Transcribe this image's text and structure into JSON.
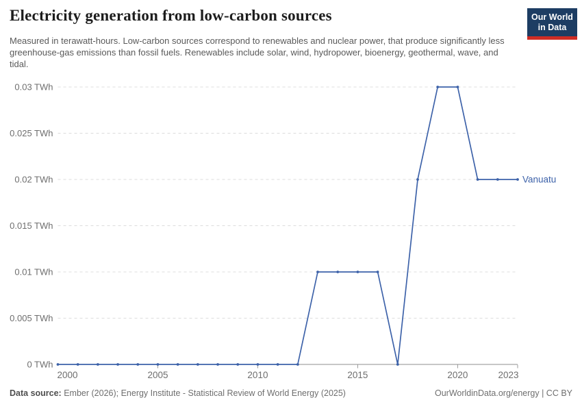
{
  "header": {
    "title": "Electricity generation from low-carbon sources",
    "subtitle": "Measured in terawatt-hours. Low-carbon sources correspond to renewables and nuclear power, that produce significantly less greenhouse-gas emissions than fossil fuels. Renewables include solar, wind, hydropower, bioenergy, geothermal, wave, and tidal.",
    "logo": {
      "line1": "Our World",
      "line2": "in Data",
      "bg_color": "#1d3d63",
      "accent_color": "#cf2d24"
    }
  },
  "chart_data": {
    "type": "line",
    "title": "Electricity generation from low-carbon sources",
    "xlabel": "",
    "ylabel": "",
    "x": [
      2000,
      2001,
      2002,
      2003,
      2004,
      2005,
      2006,
      2007,
      2008,
      2009,
      2010,
      2011,
      2012,
      2013,
      2014,
      2015,
      2016,
      2017,
      2018,
      2019,
      2020,
      2021,
      2022,
      2023
    ],
    "series": [
      {
        "name": "Vanuatu",
        "color": "#3d62a9",
        "values": [
          0,
          0,
          0,
          0,
          0,
          0,
          0,
          0,
          0,
          0,
          0,
          0,
          0,
          0.01,
          0.01,
          0.01,
          0.01,
          0,
          0.02,
          0.03,
          0.03,
          0.02,
          0.02,
          0.02
        ]
      }
    ],
    "xlim": [
      2000,
      2023
    ],
    "ylim": [
      0,
      0.03
    ],
    "x_ticks": [
      2000,
      2005,
      2010,
      2015,
      2020,
      2023
    ],
    "y_ticks": [
      0,
      0.005,
      0.01,
      0.015,
      0.02,
      0.025,
      0.03
    ],
    "y_tick_suffix": " TWh",
    "grid": "horizontal-dashed",
    "legend_position": "end-of-line",
    "colors": {
      "gridline": "#dcdcdc",
      "axis_line": "#8f8f8f",
      "tick": "#999999",
      "tick_label": "#6e6e6e"
    }
  },
  "footer": {
    "sources_label": "Data source:",
    "sources_text": " Ember (2026); Energy Institute - Statistical Review of World Energy (2025)",
    "credit": "OurWorldinData.org/energy | CC BY"
  }
}
